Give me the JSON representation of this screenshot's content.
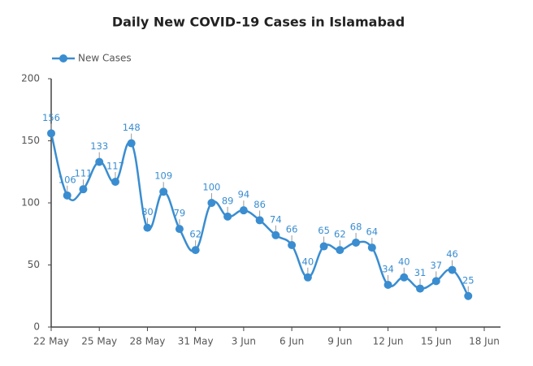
{
  "chart_data": {
    "type": "line",
    "title": "Daily New COVID-19 Cases in Islamabad",
    "x": [
      "22 May",
      "23 May",
      "24 May",
      "25 May",
      "26 May",
      "27 May",
      "28 May",
      "29 May",
      "30 May",
      "31 May",
      "1 Jun",
      "2 Jun",
      "3 Jun",
      "4 Jun",
      "5 Jun",
      "6 Jun",
      "7 Jun",
      "8 Jun",
      "9 Jun",
      "10 Jun",
      "11 Jun",
      "12 Jun",
      "13 Jun",
      "14 Jun",
      "15 Jun",
      "16 Jun",
      "17 Jun"
    ],
    "series": [
      {
        "name": "New Cases",
        "color": "#3a8dd0",
        "values": [
          156,
          106,
          111,
          133,
          117,
          148,
          80,
          109,
          79,
          62,
          100,
          89,
          94,
          86,
          74,
          66,
          40,
          65,
          62,
          68,
          64,
          34,
          40,
          31,
          37,
          46,
          25
        ]
      }
    ],
    "xlim": [
      "22 May",
      "18 Jun"
    ],
    "xticks": [
      "22 May",
      "25 May",
      "28 May",
      "31 May",
      "3 Jun",
      "6 Jun",
      "9 Jun",
      "12 Jun",
      "15 Jun",
      "18 Jun"
    ],
    "ylim": [
      0,
      200
    ],
    "yticks": [
      0,
      50,
      100,
      150,
      200
    ],
    "legend": "top-left"
  }
}
